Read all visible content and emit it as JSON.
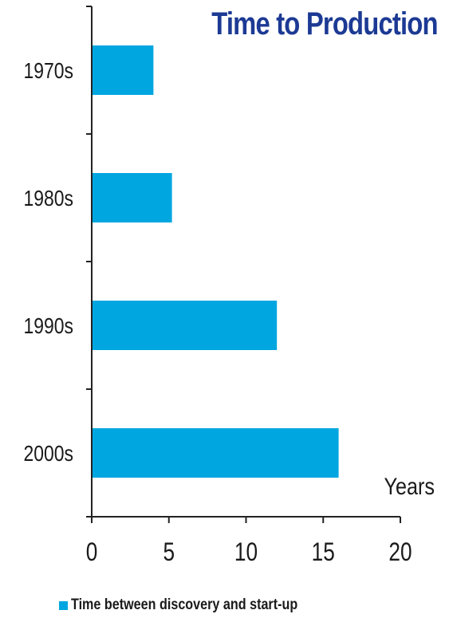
{
  "chart_data": {
    "type": "bar",
    "orientation": "horizontal",
    "title": "Time to Production",
    "categories": [
      "1970s",
      "1980s",
      "1990s",
      "2000s"
    ],
    "series": [
      {
        "name": "Time between discovery and start-up",
        "values": [
          4,
          5.2,
          12,
          16
        ]
      }
    ],
    "xlabel": "Years",
    "ylabel": "",
    "xlim": [
      0,
      20
    ],
    "x_ticks": [
      "0",
      "5",
      "10",
      "15",
      "20"
    ],
    "grid": false,
    "legend_position": "bottom",
    "colors": {
      "bar": "#00a6e0",
      "title": "#1c3a94",
      "axis": "#222222",
      "text": "#1a1a1a"
    }
  }
}
